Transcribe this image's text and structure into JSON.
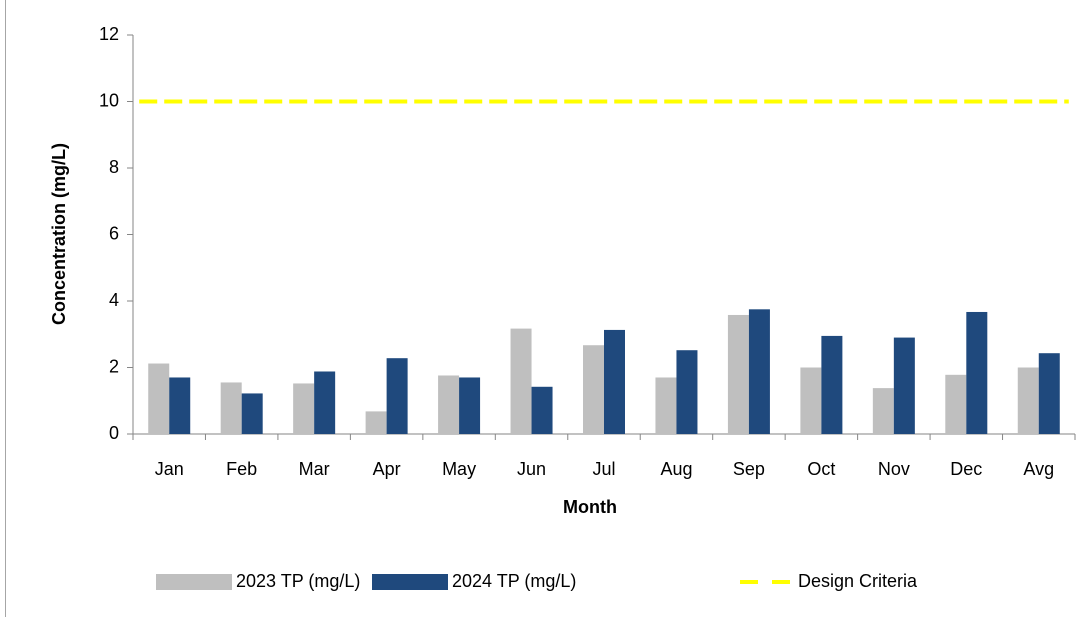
{
  "chart_data": {
    "type": "bar",
    "x_label": "Month",
    "y_label": "Concentration (mg/L)",
    "categories": [
      "Jan",
      "Feb",
      "Mar",
      "Apr",
      "May",
      "Jun",
      "Jul",
      "Aug",
      "Sep",
      "Oct",
      "Nov",
      "Dec",
      "Avg"
    ],
    "series": [
      {
        "name": "2023 TP (mg/L)",
        "color": "#bfbfbf",
        "values": [
          2.12,
          1.55,
          1.52,
          0.68,
          1.76,
          3.17,
          2.67,
          1.7,
          3.58,
          2.0,
          1.38,
          1.78,
          2.0
        ]
      },
      {
        "name": "2024 TP (mg/L)",
        "color": "#1f497d",
        "values": [
          1.7,
          1.22,
          1.88,
          2.28,
          1.7,
          1.42,
          3.13,
          2.52,
          3.75,
          2.95,
          2.9,
          3.67,
          2.43
        ]
      },
      {
        "name": "Design Criteria",
        "color": "#ffff00",
        "type": "line",
        "dashed": true,
        "values": [
          10,
          10,
          10,
          10,
          10,
          10,
          10,
          10,
          10,
          10,
          10,
          10,
          10
        ]
      }
    ],
    "ylim": [
      0,
      12
    ],
    "yticks": [
      0,
      2,
      4,
      6,
      8,
      10,
      12
    ],
    "grid": false,
    "legend": "bottom"
  }
}
